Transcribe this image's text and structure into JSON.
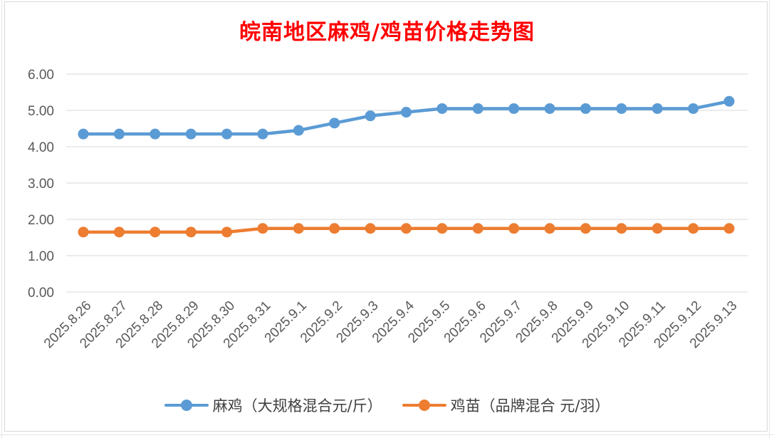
{
  "chart_data": {
    "type": "line",
    "title": "皖南地区麻鸡/鸡苗价格走势图",
    "categories": [
      "2025.8.26",
      "2025.8.27",
      "2025.8.28",
      "2025.8.29",
      "2025.8.30",
      "2025.8.31",
      "2025.9.1",
      "2025.9.2",
      "2025.9.3",
      "2025.9.4",
      "2025.9.5",
      "2025.9.6",
      "2025.9.7",
      "2025.9.8",
      "2025.9.9",
      "2025.9.10",
      "2025.9.11",
      "2025.9.12",
      "2025.9.13"
    ],
    "series": [
      {
        "name": "麻鸡（大规格混合元/斤）",
        "color": "#5b9bd5",
        "values": [
          4.35,
          4.35,
          4.35,
          4.35,
          4.35,
          4.35,
          4.45,
          4.65,
          4.85,
          4.95,
          5.05,
          5.05,
          5.05,
          5.05,
          5.05,
          5.05,
          5.05,
          5.05,
          5.25
        ]
      },
      {
        "name": "鸡苗（品牌混合 元/羽）",
        "color": "#ed7d31",
        "values": [
          1.65,
          1.65,
          1.65,
          1.65,
          1.65,
          1.75,
          1.75,
          1.75,
          1.75,
          1.75,
          1.75,
          1.75,
          1.75,
          1.75,
          1.75,
          1.75,
          1.75,
          1.75,
          1.75
        ]
      }
    ],
    "yticks": [
      "0.00",
      "1.00",
      "2.00",
      "3.00",
      "4.00",
      "5.00",
      "6.00"
    ],
    "ylim": [
      0,
      6
    ],
    "grid": true,
    "legend_position": "bottom",
    "title_color": "#ff0000"
  }
}
